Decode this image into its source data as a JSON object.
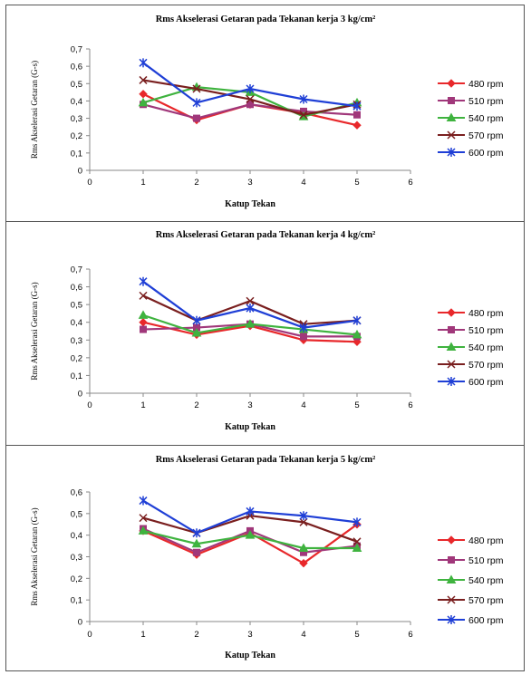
{
  "chart_data": [
    {
      "type": "line",
      "title": "Rms Akselerasi Getaran pada Tekanan kerja 3 kg/cm²",
      "xlabel": "Katup Tekan",
      "ylabel": "Rms Akselerasi Getaran (G-s)",
      "x_ticks": [
        "0",
        "1",
        "2",
        "3",
        "4",
        "5",
        "6"
      ],
      "y_ticks": [
        "0",
        "0,1",
        "0,2",
        "0,3",
        "0,4",
        "0,5",
        "0,6",
        "0,7"
      ],
      "xlim": [
        0,
        6
      ],
      "ylim": [
        0,
        0.7
      ],
      "grid": false,
      "legend_position": "right",
      "x": [
        1,
        2,
        3,
        4,
        5
      ],
      "series": [
        {
          "name": "480 rpm",
          "color": "#e8282b",
          "marker": "diamond",
          "values": [
            0.44,
            0.29,
            0.38,
            0.33,
            0.26
          ]
        },
        {
          "name": "510 rpm",
          "color": "#a0377a",
          "marker": "square",
          "values": [
            0.38,
            0.3,
            0.38,
            0.34,
            0.32
          ]
        },
        {
          "name": "540 rpm",
          "color": "#3fb33f",
          "marker": "triangle",
          "values": [
            0.39,
            0.48,
            0.45,
            0.31,
            0.39
          ]
        },
        {
          "name": "570 rpm",
          "color": "#7a1f1f",
          "marker": "x",
          "values": [
            0.52,
            0.47,
            0.41,
            0.32,
            0.38
          ]
        },
        {
          "name": "600 rpm",
          "color": "#1f3fd6",
          "marker": "star",
          "values": [
            0.62,
            0.39,
            0.47,
            0.41,
            0.37
          ]
        }
      ]
    },
    {
      "type": "line",
      "title": "Rms Akselerasi Getaran pada Tekanan kerja 4 kg/cm²",
      "xlabel": "Katup Tekan",
      "ylabel": "Rms Akselerasi Getaran (G-s)",
      "x_ticks": [
        "0",
        "1",
        "2",
        "3",
        "4",
        "5",
        "6"
      ],
      "y_ticks": [
        "0",
        "0,1",
        "0,2",
        "0,3",
        "0,4",
        "0,5",
        "0,6",
        "0,7"
      ],
      "xlim": [
        0,
        6
      ],
      "ylim": [
        0,
        0.7
      ],
      "grid": false,
      "legend_position": "right",
      "x": [
        1,
        2,
        3,
        4,
        5
      ],
      "series": [
        {
          "name": "480 rpm",
          "color": "#e8282b",
          "marker": "diamond",
          "values": [
            0.4,
            0.33,
            0.38,
            0.3,
            0.29
          ]
        },
        {
          "name": "510 rpm",
          "color": "#a0377a",
          "marker": "square",
          "values": [
            0.36,
            0.37,
            0.39,
            0.32,
            0.32
          ]
        },
        {
          "name": "540 rpm",
          "color": "#3fb33f",
          "marker": "triangle",
          "values": [
            0.44,
            0.34,
            0.39,
            0.36,
            0.33
          ]
        },
        {
          "name": "570 rpm",
          "color": "#7a1f1f",
          "marker": "x",
          "values": [
            0.55,
            0.41,
            0.52,
            0.39,
            0.41
          ]
        },
        {
          "name": "600 rpm",
          "color": "#1f3fd6",
          "marker": "star",
          "values": [
            0.63,
            0.41,
            0.48,
            0.37,
            0.41
          ]
        }
      ]
    },
    {
      "type": "line",
      "title": "Rms Akselerasi Getaran pada Tekanan kerja 5 kg/cm²",
      "xlabel": "Katup Tekan",
      "ylabel": "Rms Akselerasi Getaran (G-s)",
      "x_ticks": [
        "0",
        "1",
        "2",
        "3",
        "4",
        "5",
        "6"
      ],
      "y_ticks": [
        "0",
        "0,1",
        "0,2",
        "0,3",
        "0,4",
        "0,5",
        "0,6"
      ],
      "xlim": [
        0,
        6
      ],
      "ylim": [
        0,
        0.6
      ],
      "grid": false,
      "legend_position": "right",
      "x": [
        1,
        2,
        3,
        4,
        5
      ],
      "series": [
        {
          "name": "480 rpm",
          "color": "#e8282b",
          "marker": "diamond",
          "values": [
            0.42,
            0.31,
            0.41,
            0.27,
            0.45
          ]
        },
        {
          "name": "510 rpm",
          "color": "#a0377a",
          "marker": "square",
          "values": [
            0.43,
            0.32,
            0.42,
            0.32,
            0.35
          ]
        },
        {
          "name": "540 rpm",
          "color": "#3fb33f",
          "marker": "triangle",
          "values": [
            0.42,
            0.36,
            0.4,
            0.34,
            0.34
          ]
        },
        {
          "name": "570 rpm",
          "color": "#7a1f1f",
          "marker": "x",
          "values": [
            0.48,
            0.41,
            0.49,
            0.46,
            0.37
          ]
        },
        {
          "name": "600 rpm",
          "color": "#1f3fd6",
          "marker": "star",
          "values": [
            0.56,
            0.41,
            0.51,
            0.49,
            0.46
          ]
        }
      ]
    }
  ]
}
